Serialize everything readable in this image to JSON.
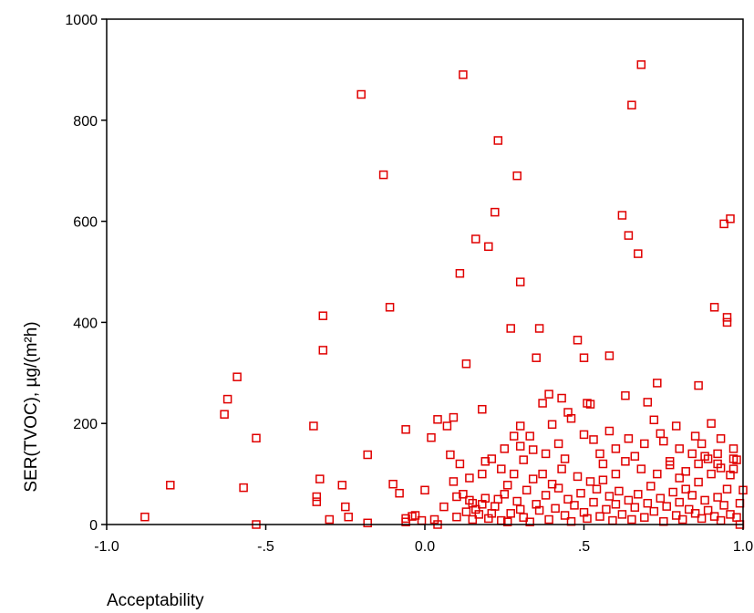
{
  "chart_data": {
    "type": "scatter",
    "title": "",
    "xlabel": "Acceptability",
    "ylabel": "SER(TVOC), µg/(m²h)",
    "xlim": [
      -1.0,
      1.0
    ],
    "ylim": [
      0,
      1000
    ],
    "grid": false,
    "marker": "open-square",
    "marker_color": "#e00000",
    "x_ticks": [
      {
        "value": -1.0,
        "label": "-1.0"
      },
      {
        "value": -0.5,
        "label": "-.5"
      },
      {
        "value": 0.0,
        "label": "0.0"
      },
      {
        "value": 0.5,
        "label": ".5"
      },
      {
        "value": 1.0,
        "label": "1.0"
      }
    ],
    "y_ticks": [
      {
        "value": 0,
        "label": "0"
      },
      {
        "value": 200,
        "label": "200"
      },
      {
        "value": 400,
        "label": "400"
      },
      {
        "value": 600,
        "label": "600"
      },
      {
        "value": 800,
        "label": "800"
      },
      {
        "value": 1000,
        "label": "1000"
      }
    ],
    "points": [
      [
        -0.88,
        15
      ],
      [
        -0.8,
        78
      ],
      [
        -0.63,
        218
      ],
      [
        -0.62,
        248
      ],
      [
        -0.59,
        292
      ],
      [
        -0.57,
        73
      ],
      [
        -0.53,
        171
      ],
      [
        -0.53,
        0
      ],
      [
        -0.35,
        195
      ],
      [
        -0.34,
        55
      ],
      [
        -0.34,
        45
      ],
      [
        -0.33,
        90
      ],
      [
        -0.32,
        345
      ],
      [
        -0.32,
        413
      ],
      [
        -0.3,
        10
      ],
      [
        -0.26,
        78
      ],
      [
        -0.25,
        35
      ],
      [
        -0.24,
        15
      ],
      [
        -0.2,
        851
      ],
      [
        -0.18,
        138
      ],
      [
        -0.18,
        3
      ],
      [
        -0.13,
        692
      ],
      [
        -0.11,
        430
      ],
      [
        -0.1,
        80
      ],
      [
        -0.08,
        62
      ],
      [
        -0.06,
        188
      ],
      [
        -0.06,
        12
      ],
      [
        -0.06,
        5
      ],
      [
        -0.04,
        16
      ],
      [
        -0.03,
        18
      ],
      [
        -0.01,
        8
      ],
      [
        0.0,
        68
      ],
      [
        0.02,
        172
      ],
      [
        0.03,
        10
      ],
      [
        0.04,
        0
      ],
      [
        0.04,
        208
      ],
      [
        0.06,
        35
      ],
      [
        0.07,
        195
      ],
      [
        0.08,
        138
      ],
      [
        0.09,
        85
      ],
      [
        0.09,
        212
      ],
      [
        0.1,
        55
      ],
      [
        0.11,
        497
      ],
      [
        0.11,
        120
      ],
      [
        0.12,
        890
      ],
      [
        0.13,
        318
      ],
      [
        0.14,
        92
      ],
      [
        0.15,
        42
      ],
      [
        0.16,
        565
      ],
      [
        0.18,
        228
      ],
      [
        0.19,
        125
      ],
      [
        0.2,
        550
      ],
      [
        0.21,
        130
      ],
      [
        0.22,
        618
      ],
      [
        0.23,
        760
      ],
      [
        0.24,
        110
      ],
      [
        0.26,
        78
      ],
      [
        0.27,
        388
      ],
      [
        0.28,
        175
      ],
      [
        0.29,
        690
      ],
      [
        0.3,
        480
      ],
      [
        0.3,
        195
      ],
      [
        0.31,
        128
      ],
      [
        0.33,
        175
      ],
      [
        0.34,
        148
      ],
      [
        0.35,
        330
      ],
      [
        0.36,
        388
      ],
      [
        0.37,
        240
      ],
      [
        0.39,
        258
      ],
      [
        0.4,
        198
      ],
      [
        0.42,
        160
      ],
      [
        0.43,
        250
      ],
      [
        0.45,
        222
      ],
      [
        0.46,
        210
      ],
      [
        0.48,
        365
      ],
      [
        0.5,
        330
      ],
      [
        0.51,
        240
      ],
      [
        0.52,
        238
      ],
      [
        0.53,
        168
      ],
      [
        0.55,
        140
      ],
      [
        0.56,
        88
      ],
      [
        0.58,
        334
      ],
      [
        0.6,
        150
      ],
      [
        0.62,
        612
      ],
      [
        0.63,
        255
      ],
      [
        0.64,
        572
      ],
      [
        0.65,
        830
      ],
      [
        0.66,
        135
      ],
      [
        0.67,
        536
      ],
      [
        0.68,
        910
      ],
      [
        0.7,
        242
      ],
      [
        0.72,
        207
      ],
      [
        0.73,
        280
      ],
      [
        0.75,
        165
      ],
      [
        0.77,
        118
      ],
      [
        0.79,
        195
      ],
      [
        0.8,
        92
      ],
      [
        0.82,
        70
      ],
      [
        0.84,
        140
      ],
      [
        0.86,
        275
      ],
      [
        0.87,
        160
      ],
      [
        0.88,
        135
      ],
      [
        0.9,
        200
      ],
      [
        0.91,
        430
      ],
      [
        0.92,
        140
      ],
      [
        0.93,
        170
      ],
      [
        0.94,
        595
      ],
      [
        0.95,
        410
      ],
      [
        0.95,
        400
      ],
      [
        0.96,
        605
      ],
      [
        0.97,
        130
      ],
      [
        0.98,
        128
      ],
      [
        0.99,
        0
      ],
      [
        1.0,
        68
      ],
      [
        0.12,
        60
      ],
      [
        0.14,
        48
      ],
      [
        0.16,
        30
      ],
      [
        0.17,
        20
      ],
      [
        0.19,
        52
      ],
      [
        0.2,
        12
      ],
      [
        0.22,
        36
      ],
      [
        0.24,
        8
      ],
      [
        0.25,
        60
      ],
      [
        0.27,
        22
      ],
      [
        0.29,
        46
      ],
      [
        0.31,
        14
      ],
      [
        0.32,
        68
      ],
      [
        0.33,
        5
      ],
      [
        0.35,
        40
      ],
      [
        0.36,
        28
      ],
      [
        0.38,
        58
      ],
      [
        0.39,
        10
      ],
      [
        0.41,
        32
      ],
      [
        0.42,
        72
      ],
      [
        0.44,
        18
      ],
      [
        0.45,
        50
      ],
      [
        0.46,
        6
      ],
      [
        0.47,
        38
      ],
      [
        0.49,
        62
      ],
      [
        0.5,
        24
      ],
      [
        0.51,
        12
      ],
      [
        0.53,
        44
      ],
      [
        0.54,
        70
      ],
      [
        0.55,
        16
      ],
      [
        0.57,
        30
      ],
      [
        0.58,
        56
      ],
      [
        0.59,
        8
      ],
      [
        0.6,
        40
      ],
      [
        0.61,
        66
      ],
      [
        0.62,
        20
      ],
      [
        0.64,
        48
      ],
      [
        0.65,
        10
      ],
      [
        0.66,
        34
      ],
      [
        0.67,
        60
      ],
      [
        0.69,
        14
      ],
      [
        0.7,
        42
      ],
      [
        0.71,
        76
      ],
      [
        0.72,
        26
      ],
      [
        0.74,
        52
      ],
      [
        0.75,
        6
      ],
      [
        0.76,
        36
      ],
      [
        0.78,
        64
      ],
      [
        0.79,
        18
      ],
      [
        0.8,
        44
      ],
      [
        0.81,
        10
      ],
      [
        0.83,
        30
      ],
      [
        0.84,
        58
      ],
      [
        0.85,
        22
      ],
      [
        0.86,
        84
      ],
      [
        0.87,
        12
      ],
      [
        0.88,
        48
      ],
      [
        0.89,
        28
      ],
      [
        0.9,
        100
      ],
      [
        0.91,
        16
      ],
      [
        0.92,
        54
      ],
      [
        0.93,
        8
      ],
      [
        0.94,
        38
      ],
      [
        0.95,
        70
      ],
      [
        0.96,
        20
      ],
      [
        0.97,
        110
      ],
      [
        0.98,
        14
      ],
      [
        0.99,
        42
      ],
      [
        0.1,
        15
      ],
      [
        0.13,
        25
      ],
      [
        0.15,
        10
      ],
      [
        0.18,
        40
      ],
      [
        0.21,
        22
      ],
      [
        0.23,
        50
      ],
      [
        0.26,
        5
      ],
      [
        0.28,
        100
      ],
      [
        0.3,
        30
      ],
      [
        0.34,
        90
      ],
      [
        0.37,
        100
      ],
      [
        0.4,
        80
      ],
      [
        0.43,
        110
      ],
      [
        0.48,
        95
      ],
      [
        0.52,
        85
      ],
      [
        0.56,
        120
      ],
      [
        0.6,
        100
      ],
      [
        0.63,
        125
      ],
      [
        0.68,
        110
      ],
      [
        0.73,
        100
      ],
      [
        0.77,
        125
      ],
      [
        0.82,
        105
      ],
      [
        0.86,
        120
      ],
      [
        0.89,
        130
      ],
      [
        0.93,
        112
      ],
      [
        0.96,
        98
      ],
      [
        0.18,
        100
      ],
      [
        0.25,
        150
      ],
      [
        0.3,
        155
      ],
      [
        0.38,
        140
      ],
      [
        0.44,
        130
      ],
      [
        0.5,
        178
      ],
      [
        0.58,
        185
      ],
      [
        0.64,
        170
      ],
      [
        0.69,
        160
      ],
      [
        0.74,
        180
      ],
      [
        0.8,
        150
      ],
      [
        0.85,
        175
      ],
      [
        0.92,
        120
      ],
      [
        0.97,
        150
      ]
    ]
  }
}
